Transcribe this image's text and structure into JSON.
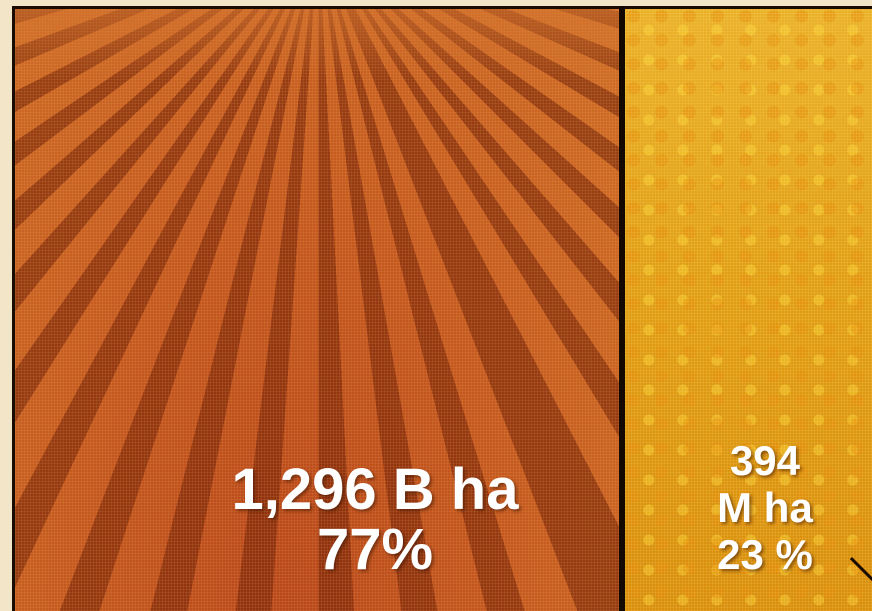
{
  "left_panel": {
    "area": "1,296 B ha",
    "share": "77%",
    "colors": {
      "tint": "#c4581f"
    }
  },
  "right_panel": {
    "area_number": "394",
    "area_unit": "M ha",
    "share": "23 %",
    "colors": {
      "tint": "#e19e14"
    }
  }
}
